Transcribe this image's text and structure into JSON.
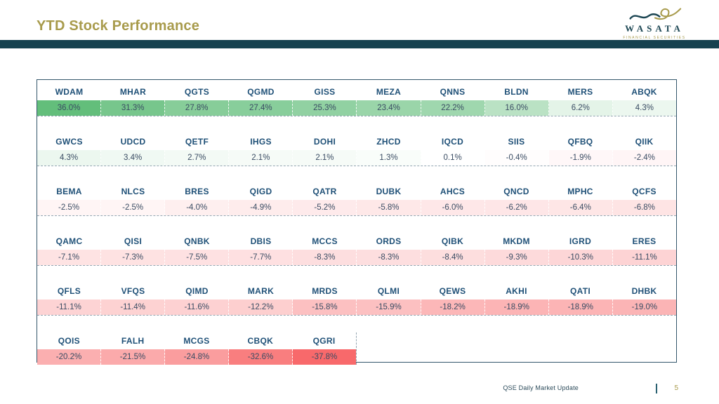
{
  "slide": {
    "title": "YTD Stock Performance",
    "colors": {
      "title-gold": "#A89B4C",
      "bar-teal": "#16414F",
      "ticker-blue": "#1F5077",
      "value-text": "#3A4C63",
      "tbl-border": "#33566B",
      "dash": "#93A5B1"
    }
  },
  "logo": {
    "wordmark": "WASATA",
    "subtitle": "FINANCIAL SECURITIES"
  },
  "footer": {
    "label": "QSE Daily Market Update",
    "page_number": "5"
  },
  "chart_data": {
    "type": "heatmap",
    "title": "YTD Stock Performance",
    "value_unit": "percent",
    "color_scale": {
      "min_color": "#F8696B",
      "mid_color": "#FFFFFF",
      "max_color": "#63BE7B",
      "domain": [
        -37.8,
        0,
        36.0
      ]
    },
    "rows": [
      [
        {
          "ticker": "WDAM",
          "value": 36.0
        },
        {
          "ticker": "MHAR",
          "value": 31.3
        },
        {
          "ticker": "QGTS",
          "value": 27.8
        },
        {
          "ticker": "QGMD",
          "value": 27.4
        },
        {
          "ticker": "GISS",
          "value": 25.3
        },
        {
          "ticker": "MEZA",
          "value": 23.4
        },
        {
          "ticker": "QNNS",
          "value": 22.2
        },
        {
          "ticker": "BLDN",
          "value": 16.0
        },
        {
          "ticker": "MERS",
          "value": 6.2
        },
        {
          "ticker": "ABQK",
          "value": 4.3
        }
      ],
      [
        {
          "ticker": "GWCS",
          "value": 4.3
        },
        {
          "ticker": "UDCD",
          "value": 3.4
        },
        {
          "ticker": "QETF",
          "value": 2.7
        },
        {
          "ticker": "IHGS",
          "value": 2.1
        },
        {
          "ticker": "DOHI",
          "value": 2.1
        },
        {
          "ticker": "ZHCD",
          "value": 1.3
        },
        {
          "ticker": "IQCD",
          "value": 0.1
        },
        {
          "ticker": "SIIS",
          "value": -0.4
        },
        {
          "ticker": "QFBQ",
          "value": -1.9
        },
        {
          "ticker": "QIIK",
          "value": -2.4
        }
      ],
      [
        {
          "ticker": "BEMA",
          "value": -2.5
        },
        {
          "ticker": "NLCS",
          "value": -2.5
        },
        {
          "ticker": "BRES",
          "value": -4.0
        },
        {
          "ticker": "QIGD",
          "value": -4.9
        },
        {
          "ticker": "QATR",
          "value": -5.2
        },
        {
          "ticker": "DUBK",
          "value": -5.8
        },
        {
          "ticker": "AHCS",
          "value": -6.0
        },
        {
          "ticker": "QNCD",
          "value": -6.2
        },
        {
          "ticker": "MPHC",
          "value": -6.4
        },
        {
          "ticker": "QCFS",
          "value": -6.8
        }
      ],
      [
        {
          "ticker": "QAMC",
          "value": -7.1
        },
        {
          "ticker": "QISI",
          "value": -7.3
        },
        {
          "ticker": "QNBK",
          "value": -7.5
        },
        {
          "ticker": "DBIS",
          "value": -7.7
        },
        {
          "ticker": "MCCS",
          "value": -8.3
        },
        {
          "ticker": "ORDS",
          "value": -8.3
        },
        {
          "ticker": "QIBK",
          "value": -8.4
        },
        {
          "ticker": "MKDM",
          "value": -9.3
        },
        {
          "ticker": "IGRD",
          "value": -10.3
        },
        {
          "ticker": "ERES",
          "value": -11.1
        }
      ],
      [
        {
          "ticker": "QFLS",
          "value": -11.1
        },
        {
          "ticker": "VFQS",
          "value": -11.4
        },
        {
          "ticker": "QIMD",
          "value": -11.6
        },
        {
          "ticker": "MARK",
          "value": -12.2
        },
        {
          "ticker": "MRDS",
          "value": -15.8
        },
        {
          "ticker": "QLMI",
          "value": -15.9
        },
        {
          "ticker": "QEWS",
          "value": -18.2
        },
        {
          "ticker": "AKHI",
          "value": -18.9
        },
        {
          "ticker": "QATI",
          "value": -18.9
        },
        {
          "ticker": "DHBK",
          "value": -19.0
        }
      ],
      [
        {
          "ticker": "QOIS",
          "value": -20.2
        },
        {
          "ticker": "FALH",
          "value": -21.5
        },
        {
          "ticker": "MCGS",
          "value": -24.8
        },
        {
          "ticker": "CBQK",
          "value": -32.6
        },
        {
          "ticker": "QGRI",
          "value": -37.8
        }
      ]
    ]
  }
}
